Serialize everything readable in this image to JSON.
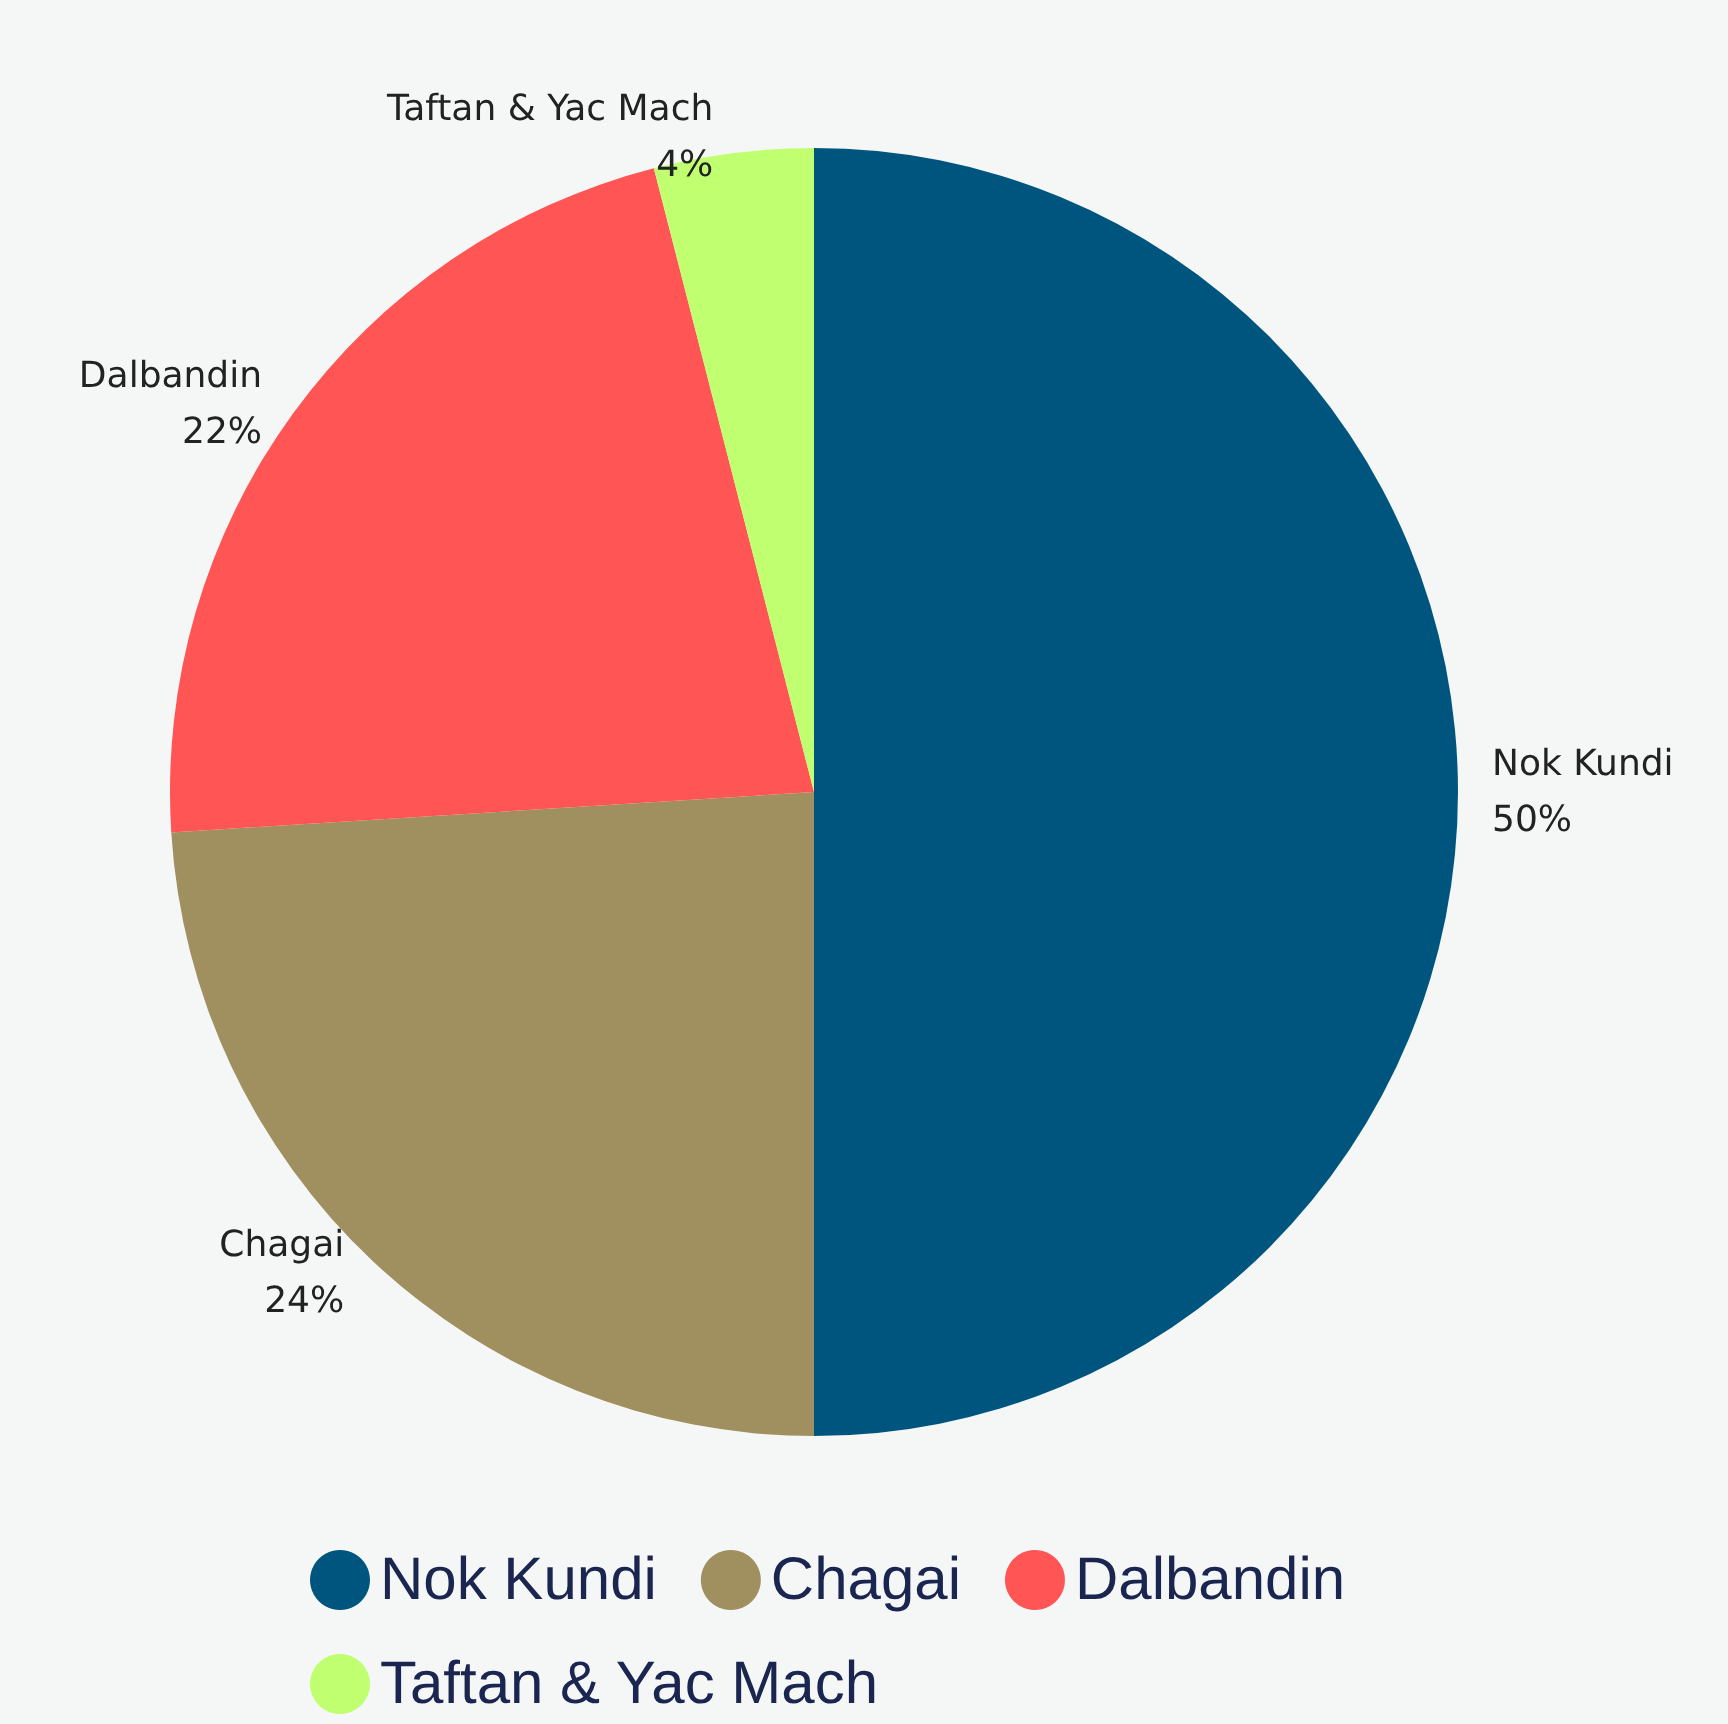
{
  "chart_data": {
    "type": "pie",
    "categories": [
      "Nok Kundi",
      "Chagai",
      "Dalbandin",
      "Taftan & Yac Mach"
    ],
    "values": [
      50,
      24,
      22,
      4
    ],
    "value_labels": [
      "50%",
      "24%",
      "22%",
      "4%"
    ],
    "colors": [
      "#00557f",
      "#a08f5f",
      "#ff5555",
      "#c0ff6f"
    ],
    "legend": "bottom"
  }
}
